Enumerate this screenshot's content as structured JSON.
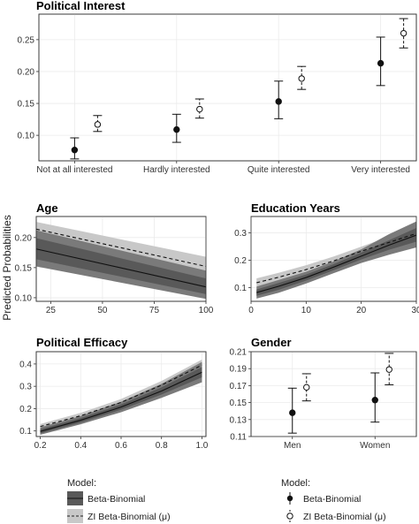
{
  "y_axis_label": "Predicted Probabilities",
  "legends": {
    "ribbon": {
      "title": "Model:",
      "items": [
        "Beta-Binomial",
        "ZI Beta-Binomial (μ)"
      ]
    },
    "points": {
      "title": "Model:",
      "items": [
        "Beta-Binomial",
        "ZI Beta-Binomial (μ)"
      ]
    }
  },
  "colors": {
    "ribbon_outer": "#7a7a7a",
    "ribbon_inner": "#595959",
    "ribbon_zi": "#c8c8c8",
    "line": "#111111",
    "panel_grid": "#ebebeb"
  },
  "chart_data": [
    {
      "id": "political_interest",
      "type": "scatter",
      "title": "Political Interest",
      "categories": [
        "Not at all interested",
        "Hardly interested",
        "Quite interested",
        "Very interested"
      ],
      "ylim": [
        0.06,
        0.29
      ],
      "yticks": [
        0.1,
        0.15,
        0.2,
        0.25
      ],
      "series": [
        {
          "name": "Beta-Binomial",
          "values": [
            0.077,
            0.109,
            0.153,
            0.213
          ],
          "lower": [
            0.063,
            0.089,
            0.126,
            0.178
          ],
          "upper": [
            0.096,
            0.133,
            0.185,
            0.254
          ]
        },
        {
          "name": "ZI Beta-Binomial (μ)",
          "values": [
            0.117,
            0.141,
            0.189,
            0.26
          ],
          "lower": [
            0.106,
            0.127,
            0.172,
            0.237
          ],
          "upper": [
            0.131,
            0.157,
            0.208,
            0.283
          ]
        }
      ]
    },
    {
      "id": "age",
      "type": "line",
      "title": "Age",
      "xlim": [
        18,
        100
      ],
      "ylim": [
        0.094,
        0.235
      ],
      "xticks": [
        25,
        50,
        75,
        100
      ],
      "yticks": [
        0.1,
        0.15,
        0.2
      ],
      "series": [
        {
          "name": "Beta-Binomial",
          "x": [
            18,
            100
          ],
          "values": [
            0.181,
            0.118
          ],
          "outer_lower": [
            0.152,
            0.098
          ],
          "outer_upper": [
            0.212,
            0.145
          ],
          "inner_lower": [
            0.164,
            0.106
          ],
          "inner_upper": [
            0.199,
            0.132
          ]
        },
        {
          "name": "ZI Beta-Binomial (μ)",
          "x": [
            18,
            100
          ],
          "values": [
            0.214,
            0.152
          ],
          "lower": [
            0.201,
            0.138
          ],
          "upper": [
            0.226,
            0.168
          ]
        }
      ]
    },
    {
      "id": "education_years",
      "type": "line",
      "title": "Education Years",
      "xlim": [
        0,
        30
      ],
      "ylim": [
        0.05,
        0.36
      ],
      "xticks": [
        0,
        10,
        20,
        30
      ],
      "yticks": [
        0.1,
        0.2,
        0.3
      ],
      "series": [
        {
          "name": "Beta-Binomial",
          "x": [
            1,
            5,
            10,
            15,
            20,
            25,
            30
          ],
          "values": [
            0.082,
            0.105,
            0.137,
            0.175,
            0.215,
            0.255,
            0.292
          ],
          "outer_lower": [
            0.06,
            0.081,
            0.115,
            0.153,
            0.19,
            0.22,
            0.247
          ],
          "outer_upper": [
            0.104,
            0.128,
            0.158,
            0.196,
            0.24,
            0.295,
            0.342
          ],
          "inner_lower": [
            0.07,
            0.092,
            0.126,
            0.164,
            0.203,
            0.238,
            0.268
          ],
          "inner_upper": [
            0.093,
            0.117,
            0.148,
            0.186,
            0.228,
            0.273,
            0.318
          ]
        },
        {
          "name": "ZI Beta-Binomial (μ)",
          "x": [
            1,
            5,
            10,
            15,
            20,
            25,
            30
          ],
          "values": [
            0.118,
            0.138,
            0.166,
            0.198,
            0.233,
            0.265,
            0.298
          ],
          "lower": [
            0.104,
            0.124,
            0.152,
            0.184,
            0.216,
            0.245,
            0.272
          ],
          "upper": [
            0.134,
            0.154,
            0.182,
            0.214,
            0.25,
            0.286,
            0.325
          ]
        }
      ]
    },
    {
      "id": "political_efficacy",
      "type": "line",
      "title": "Political Efficacy",
      "xlim": [
        0.18,
        1.02
      ],
      "ylim": [
        0.075,
        0.455
      ],
      "xticks": [
        0.2,
        0.4,
        0.6,
        0.8,
        1.0
      ],
      "yticks": [
        0.1,
        0.2,
        0.3,
        0.4
      ],
      "series": [
        {
          "name": "Beta-Binomial",
          "x": [
            0.2,
            0.4,
            0.6,
            0.8,
            1.0
          ],
          "values": [
            0.098,
            0.148,
            0.207,
            0.279,
            0.363
          ],
          "outer_lower": [
            0.083,
            0.13,
            0.184,
            0.248,
            0.318
          ],
          "outer_upper": [
            0.116,
            0.167,
            0.231,
            0.311,
            0.409
          ],
          "inner_lower": [
            0.089,
            0.138,
            0.195,
            0.263,
            0.34
          ],
          "inner_upper": [
            0.108,
            0.158,
            0.219,
            0.295,
            0.386
          ]
        },
        {
          "name": "ZI Beta-Binomial (μ)",
          "x": [
            0.2,
            0.4,
            0.6,
            0.8,
            1.0
          ],
          "values": [
            0.12,
            0.168,
            0.228,
            0.305,
            0.395
          ],
          "lower": [
            0.11,
            0.156,
            0.214,
            0.287,
            0.372
          ],
          "upper": [
            0.131,
            0.181,
            0.243,
            0.324,
            0.42
          ]
        }
      ]
    },
    {
      "id": "gender",
      "type": "scatter",
      "title": "Gender",
      "categories": [
        "Men",
        "Women"
      ],
      "ylim": [
        0.11,
        0.21
      ],
      "yticks": [
        0.11,
        0.13,
        0.15,
        0.17,
        0.19,
        0.21
      ],
      "series": [
        {
          "name": "Beta-Binomial",
          "values": [
            0.138,
            0.153
          ],
          "lower": [
            0.114,
            0.127
          ],
          "upper": [
            0.167,
            0.185
          ]
        },
        {
          "name": "ZI Beta-Binomial (μ)",
          "values": [
            0.168,
            0.189
          ],
          "lower": [
            0.152,
            0.171
          ],
          "upper": [
            0.184,
            0.208
          ]
        }
      ]
    }
  ]
}
